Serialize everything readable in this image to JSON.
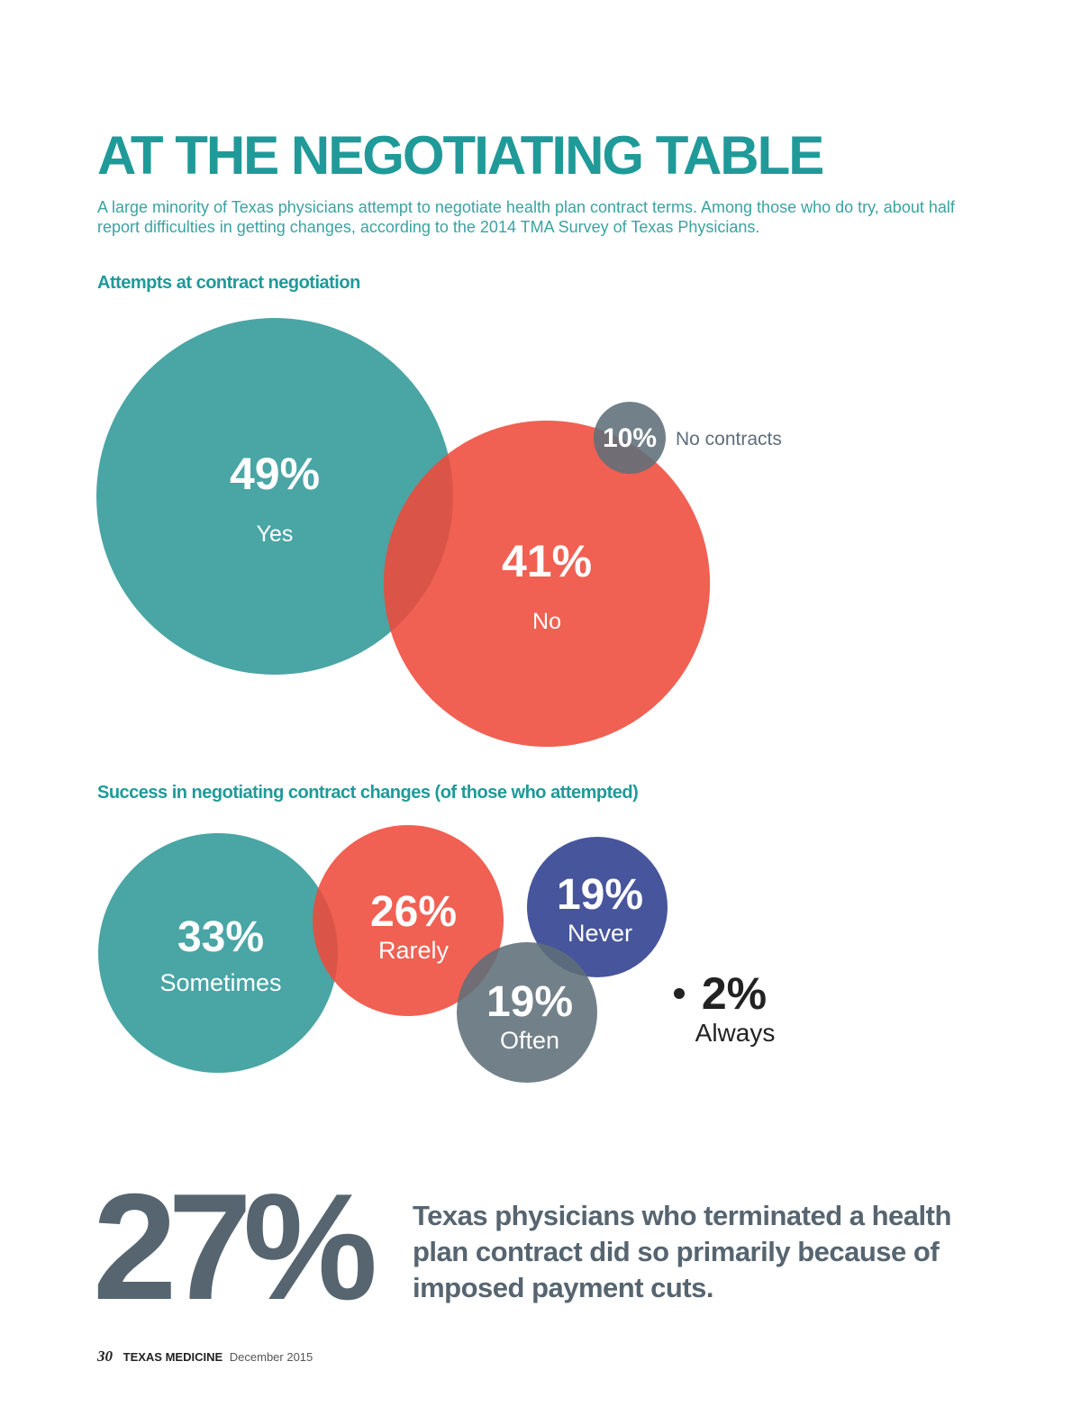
{
  "headline": "AT THE NEGOTIATING TABLE",
  "intro": "A large minority of Texas physicians attempt to negotiate health plan contract terms. Among those who do try, about half report difficulties in getting changes, according to the 2014 TMA Survey of Texas Physicians.",
  "chart_data": [
    {
      "type": "bubble",
      "title": "Attempts at contract negotiation",
      "unit": "%",
      "items": [
        {
          "label": "Yes",
          "value": 49,
          "pct_text": "49%",
          "color": "#319899"
        },
        {
          "label": "No",
          "value": 41,
          "pct_text": "41%",
          "color": "#ee4a3b"
        },
        {
          "label": "No contracts",
          "value": 10,
          "pct_text": "10%",
          "color": "#5f6e79"
        }
      ]
    },
    {
      "type": "bubble",
      "title": "Success in negotiating contract changes (of those who attempted)",
      "unit": "%",
      "items": [
        {
          "label": "Sometimes",
          "value": 33,
          "pct_text": "33%",
          "color": "#319899"
        },
        {
          "label": "Rarely",
          "value": 26,
          "pct_text": "26%",
          "color": "#ee4a3b"
        },
        {
          "label": "Never",
          "value": 19,
          "pct_text": "19%",
          "color": "#2e3d8e"
        },
        {
          "label": "Often",
          "value": 19,
          "pct_text": "19%",
          "color": "#5f6e79"
        },
        {
          "label": "Always",
          "value": 2,
          "pct_text": "2%",
          "color": "#222222"
        }
      ]
    }
  ],
  "stat": {
    "number": "27%",
    "text": "Texas physicians who terminated a health plan contract did so primarily because of imposed payment cuts."
  },
  "footer": {
    "page_number": "30",
    "magazine": "TEXAS MEDICINE",
    "issue": "December 2015"
  }
}
